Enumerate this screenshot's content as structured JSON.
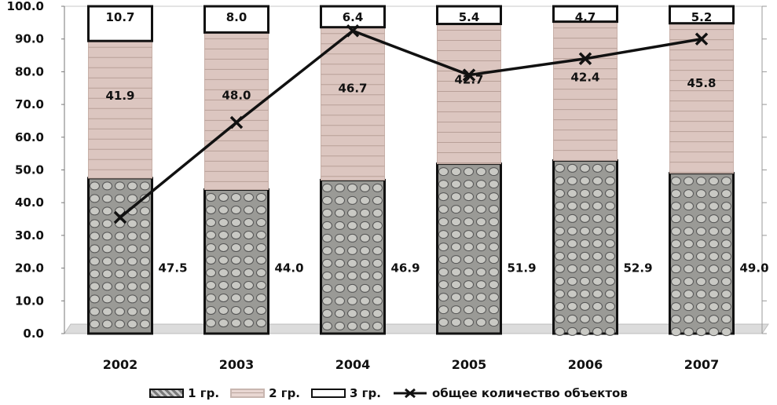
{
  "chart_data": {
    "type": "bar",
    "stacked": true,
    "categories": [
      "2002",
      "2003",
      "2004",
      "2005",
      "2006",
      "2007"
    ],
    "series": [
      {
        "name": "1 гр.",
        "values": [
          47.5,
          44.0,
          46.9,
          51.9,
          52.9,
          49.0
        ],
        "labels": [
          "47.5",
          "44.0",
          "46.9",
          "51.9",
          "52.9",
          "49.0"
        ]
      },
      {
        "name": "2 гр.",
        "values": [
          41.9,
          48.0,
          46.7,
          42.7,
          42.4,
          45.8
        ],
        "labels": [
          "41.9",
          "48.0",
          "46.7",
          "42.7",
          "42.4",
          "45.8"
        ]
      },
      {
        "name": "3 гр.",
        "values": [
          10.7,
          8.0,
          6.4,
          5.4,
          4.7,
          5.2
        ],
        "labels": [
          "10.7",
          "8.0",
          "6.4",
          "5.4",
          "4.7",
          "5.2"
        ]
      }
    ],
    "line_series": {
      "name": "общее количество объектов",
      "values": [
        35.5,
        64.5,
        92.5,
        79.0,
        84.0,
        90.0
      ]
    },
    "yticks": [
      "0.0",
      "10.0",
      "20.0",
      "30.0",
      "40.0",
      "50.0",
      "60.0",
      "70.0",
      "80.0",
      "90.0",
      "100.0"
    ],
    "ylim": [
      0,
      100
    ],
    "legend_position": "bottom",
    "colors": {
      "series1": "#9a9a96",
      "series2": "#dcc6c0",
      "series3": "#ffffff",
      "line": "#111111"
    }
  }
}
